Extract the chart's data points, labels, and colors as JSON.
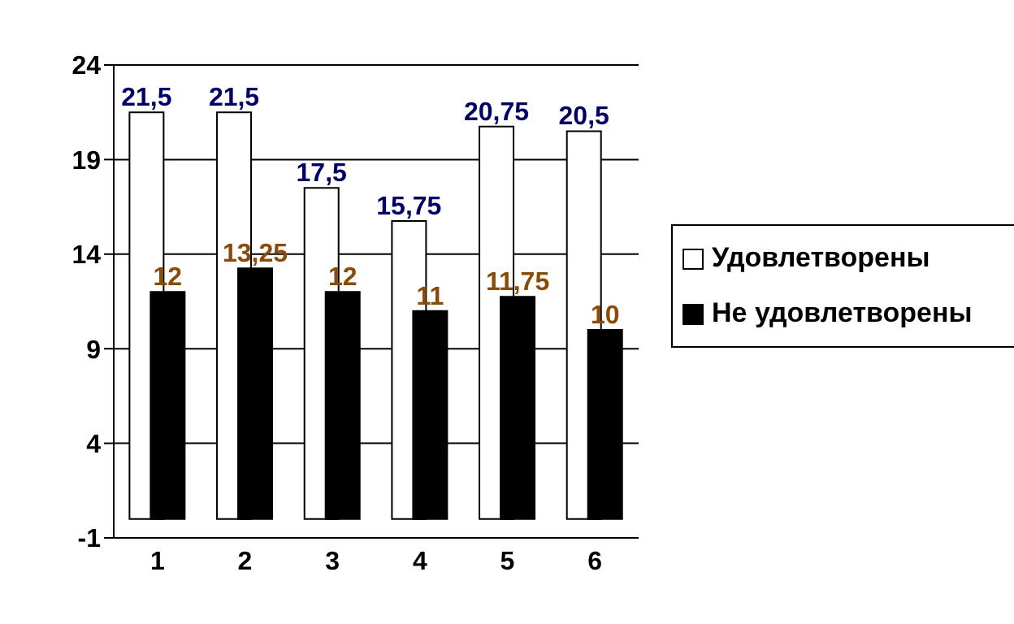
{
  "chart_data": {
    "type": "bar",
    "categories": [
      "1",
      "2",
      "3",
      "4",
      "5",
      "6"
    ],
    "series": [
      {
        "name": "Удовлетворены",
        "color": "#ffffff",
        "values": [
          21.5,
          21.5,
          17.5,
          15.75,
          20.75,
          20.5
        ],
        "value_labels": [
          "21,5",
          "21,5",
          "17,5",
          "15,75",
          "20,75",
          "20,5"
        ]
      },
      {
        "name": "Не удовлетворены",
        "color": "#000000",
        "values": [
          12,
          13.25,
          12,
          11,
          11.75,
          10
        ],
        "value_labels": [
          "12",
          "13,25",
          "12",
          "11",
          "11,75",
          "10"
        ]
      }
    ],
    "ylim": [
      -1,
      24
    ],
    "yticks": [
      -1,
      4,
      9,
      14,
      19,
      24
    ],
    "grid": "y",
    "legend": "right"
  }
}
